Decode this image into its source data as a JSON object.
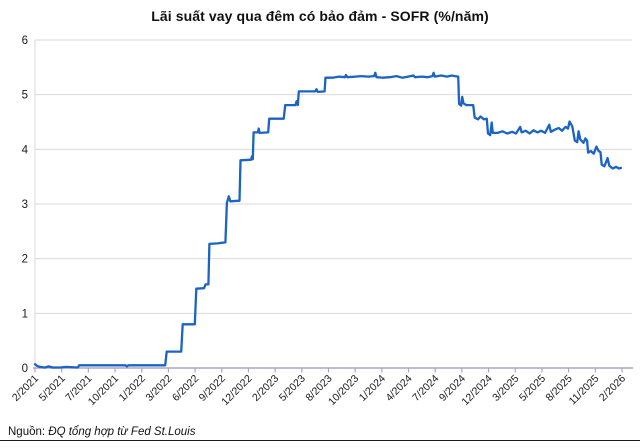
{
  "header": {
    "title": "Lãi suất vay qua đêm có bảo đảm - SOFR (%/năm)"
  },
  "footer": {
    "source_prefix": "Nguồn: ",
    "source_text": "ĐQ tổng hợp từ Fed St.Louis"
  },
  "chart_data": {
    "type": "line",
    "title": "Lãi suất vay qua đêm có bảo đảm - SOFR (%/năm)",
    "series_name": "SOFR",
    "xlabel": "",
    "ylabel": "",
    "ylim": [
      0,
      6
    ],
    "y_ticks": [
      0,
      1,
      2,
      3,
      4,
      5,
      6
    ],
    "grid": "horizontal",
    "legend": "none",
    "x_tick_labels": [
      "2/2021",
      "5/2021",
      "7/2021",
      "10/2021",
      "1/2022",
      "3/2022",
      "6/2022",
      "9/2022",
      "12/2022",
      "2/2023",
      "5/2023",
      "8/2023",
      "10/2023",
      "1/2024",
      "4/2024",
      "7/2024",
      "9/2024",
      "12/2024",
      "3/2025",
      "5/2025",
      "8/2025",
      "11/2025",
      "2/2026"
    ],
    "x_unit": "months since 2/2021 (0 = 2/2021, 60 = 2/2026)",
    "line_color": "#1b63c4",
    "gridline_color": "#d9d9d9",
    "axis_line_color": "#b3a2c7",
    "label_color": "#1a1a1a",
    "points": [
      [
        0,
        0.07
      ],
      [
        0.2,
        0.04
      ],
      [
        0.5,
        0.02
      ],
      [
        1,
        0.01
      ],
      [
        1.4,
        0.03
      ],
      [
        1.8,
        0.01
      ],
      [
        2.6,
        0.01
      ],
      [
        3.2,
        0.02
      ],
      [
        4.4,
        0.01
      ],
      [
        4.55,
        0.05
      ],
      [
        6.5,
        0.05
      ],
      [
        9.3,
        0.05
      ],
      [
        9.45,
        0.03
      ],
      [
        9.6,
        0.05
      ],
      [
        12.8,
        0.05
      ],
      [
        13.4,
        0.05
      ],
      [
        13.55,
        0.3
      ],
      [
        15.05,
        0.3
      ],
      [
        15.2,
        0.8
      ],
      [
        16.45,
        0.8
      ],
      [
        16.6,
        1.45
      ],
      [
        17.4,
        1.46
      ],
      [
        17.55,
        1.53
      ],
      [
        17.85,
        1.53
      ],
      [
        17.95,
        2.27
      ],
      [
        18.8,
        2.28
      ],
      [
        19.6,
        2.3
      ],
      [
        19.75,
        3.02
      ],
      [
        19.95,
        3.14
      ],
      [
        20.1,
        3.05
      ],
      [
        21.05,
        3.06
      ],
      [
        21.15,
        3.8
      ],
      [
        22.25,
        3.81
      ],
      [
        22.32,
        3.87
      ],
      [
        22.42,
        3.82
      ],
      [
        22.5,
        4.31
      ],
      [
        22.95,
        4.31
      ],
      [
        23.02,
        4.38
      ],
      [
        23.12,
        4.3
      ],
      [
        24,
        4.31
      ],
      [
        24.1,
        4.56
      ],
      [
        25.6,
        4.56
      ],
      [
        25.75,
        4.81
      ],
      [
        26.8,
        4.81
      ],
      [
        26.92,
        4.88
      ],
      [
        27.05,
        4.81
      ],
      [
        27.15,
        5.06
      ],
      [
        28.85,
        5.06
      ],
      [
        28.97,
        5.1
      ],
      [
        29.1,
        5.05
      ],
      [
        29.8,
        5.06
      ],
      [
        29.9,
        5.31
      ],
      [
        30.6,
        5.31
      ],
      [
        31.3,
        5.33
      ],
      [
        31.9,
        5.32
      ],
      [
        32,
        5.36
      ],
      [
        32.15,
        5.32
      ],
      [
        33,
        5.33
      ],
      [
        33.6,
        5.34
      ],
      [
        34.3,
        5.33
      ],
      [
        34.9,
        5.34
      ],
      [
        35.02,
        5.4
      ],
      [
        35.15,
        5.32
      ],
      [
        35.8,
        5.31
      ],
      [
        36.5,
        5.32
      ],
      [
        37.2,
        5.34
      ],
      [
        37.8,
        5.31
      ],
      [
        38.4,
        5.33
      ],
      [
        38.95,
        5.35
      ],
      [
        39.1,
        5.32
      ],
      [
        39.8,
        5.33
      ],
      [
        40.4,
        5.32
      ],
      [
        40.9,
        5.34
      ],
      [
        41.02,
        5.4
      ],
      [
        41.15,
        5.33
      ],
      [
        41.8,
        5.35
      ],
      [
        42.4,
        5.33
      ],
      [
        42.9,
        5.35
      ],
      [
        43.2,
        5.34
      ],
      [
        43.55,
        5.33
      ],
      [
        43.65,
        4.83
      ],
      [
        43.85,
        4.8
      ],
      [
        43.97,
        4.96
      ],
      [
        44.1,
        4.84
      ],
      [
        44.4,
        4.81
      ],
      [
        45.1,
        4.81
      ],
      [
        45.25,
        4.58
      ],
      [
        45.6,
        4.55
      ],
      [
        45.85,
        4.6
      ],
      [
        46.2,
        4.55
      ],
      [
        46.5,
        4.56
      ],
      [
        46.62,
        4.29
      ],
      [
        46.85,
        4.26
      ],
      [
        47,
        4.49
      ],
      [
        47.12,
        4.3
      ],
      [
        47.6,
        4.3
      ],
      [
        48.1,
        4.33
      ],
      [
        48.6,
        4.29
      ],
      [
        49.1,
        4.32
      ],
      [
        49.5,
        4.29
      ],
      [
        49.93,
        4.41
      ],
      [
        50.08,
        4.31
      ],
      [
        50.5,
        4.34
      ],
      [
        50.9,
        4.29
      ],
      [
        51.3,
        4.35
      ],
      [
        51.7,
        4.31
      ],
      [
        52.1,
        4.34
      ],
      [
        52.5,
        4.3
      ],
      [
        52.93,
        4.45
      ],
      [
        53.08,
        4.32
      ],
      [
        53.5,
        4.36
      ],
      [
        53.9,
        4.39
      ],
      [
        54.25,
        4.34
      ],
      [
        54.6,
        4.41
      ],
      [
        54.85,
        4.38
      ],
      [
        55.02,
        4.51
      ],
      [
        55.3,
        4.42
      ],
      [
        55.55,
        4.16
      ],
      [
        55.8,
        4.13
      ],
      [
        55.95,
        4.33
      ],
      [
        56.12,
        4.18
      ],
      [
        56.45,
        4.12
      ],
      [
        56.65,
        4.2
      ],
      [
        56.82,
        4.16
      ],
      [
        56.92,
        3.94
      ],
      [
        57.2,
        3.97
      ],
      [
        57.5,
        3.92
      ],
      [
        57.78,
        4.05
      ],
      [
        58,
        3.97
      ],
      [
        58.2,
        3.95
      ],
      [
        58.32,
        3.72
      ],
      [
        58.6,
        3.69
      ],
      [
        58.93,
        3.84
      ],
      [
        59.1,
        3.7
      ],
      [
        59.45,
        3.65
      ],
      [
        59.8,
        3.68
      ],
      [
        60.1,
        3.65
      ],
      [
        60.3,
        3.66
      ]
    ]
  }
}
